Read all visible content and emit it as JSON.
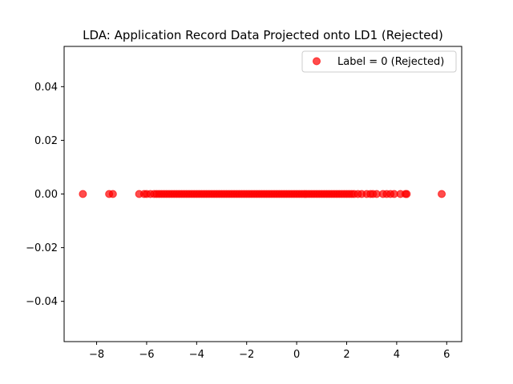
{
  "chart_data": {
    "type": "scatter",
    "title": "LDA: Application Record Data Projected onto LD1 (Rejected)",
    "xlabel": "",
    "ylabel": "",
    "xlim": [
      -9.3,
      6.6
    ],
    "ylim": [
      -0.055,
      0.055
    ],
    "xticks": [
      -8,
      -6,
      -4,
      -2,
      0,
      2,
      4,
      6
    ],
    "xtick_labels": [
      "−8",
      "−6",
      "−4",
      "−2",
      "0",
      "2",
      "4",
      "6"
    ],
    "yticks": [
      -0.04,
      -0.02,
      0.0,
      0.02,
      0.04
    ],
    "ytick_labels": [
      "−0.04",
      "−0.02",
      "0.00",
      "0.02",
      "0.04"
    ],
    "grid": false,
    "legend_position": "top-right",
    "series": [
      {
        "name": "Label = 0 (Rejected)",
        "color": "#ff0000",
        "opacity": 0.7,
        "x": [
          -8.55,
          -7.5,
          -7.35,
          -6.3,
          -6.1,
          -6.0,
          -5.85,
          -5.7,
          -5.6,
          -5.5,
          -5.4,
          -5.3,
          -5.2,
          -5.1,
          -5.0,
          -4.9,
          -4.8,
          -4.7,
          -4.6,
          -4.5,
          -4.4,
          -4.3,
          -4.2,
          -4.1,
          -4.0,
          -3.9,
          -3.8,
          -3.7,
          -3.6,
          -3.5,
          -3.4,
          -3.3,
          -3.2,
          -3.1,
          -3.0,
          -2.9,
          -2.8,
          -2.7,
          -2.6,
          -2.5,
          -2.4,
          -2.3,
          -2.2,
          -2.1,
          -2.0,
          -1.9,
          -1.8,
          -1.7,
          -1.6,
          -1.5,
          -1.4,
          -1.3,
          -1.2,
          -1.1,
          -1.0,
          -0.9,
          -0.8,
          -0.7,
          -0.6,
          -0.5,
          -0.4,
          -0.3,
          -0.2,
          -0.1,
          0.0,
          0.1,
          0.2,
          0.3,
          0.4,
          0.5,
          0.6,
          0.7,
          0.8,
          0.9,
          1.0,
          1.1,
          1.2,
          1.3,
          1.4,
          1.5,
          1.6,
          1.7,
          1.8,
          1.9,
          2.0,
          2.1,
          2.2,
          2.3,
          2.45,
          2.6,
          2.8,
          2.95,
          3.05,
          3.2,
          3.45,
          3.6,
          3.75,
          3.9,
          4.15,
          4.35,
          4.4,
          5.8
        ],
        "y": [
          0,
          0,
          0,
          0,
          0,
          0,
          0,
          0,
          0,
          0,
          0,
          0,
          0,
          0,
          0,
          0,
          0,
          0,
          0,
          0,
          0,
          0,
          0,
          0,
          0,
          0,
          0,
          0,
          0,
          0,
          0,
          0,
          0,
          0,
          0,
          0,
          0,
          0,
          0,
          0,
          0,
          0,
          0,
          0,
          0,
          0,
          0,
          0,
          0,
          0,
          0,
          0,
          0,
          0,
          0,
          0,
          0,
          0,
          0,
          0,
          0,
          0,
          0,
          0,
          0,
          0,
          0,
          0,
          0,
          0,
          0,
          0,
          0,
          0,
          0,
          0,
          0,
          0,
          0,
          0,
          0,
          0,
          0,
          0,
          0,
          0,
          0,
          0,
          0,
          0,
          0,
          0,
          0,
          0,
          0,
          0,
          0,
          0,
          0,
          0,
          0,
          0
        ]
      }
    ]
  }
}
